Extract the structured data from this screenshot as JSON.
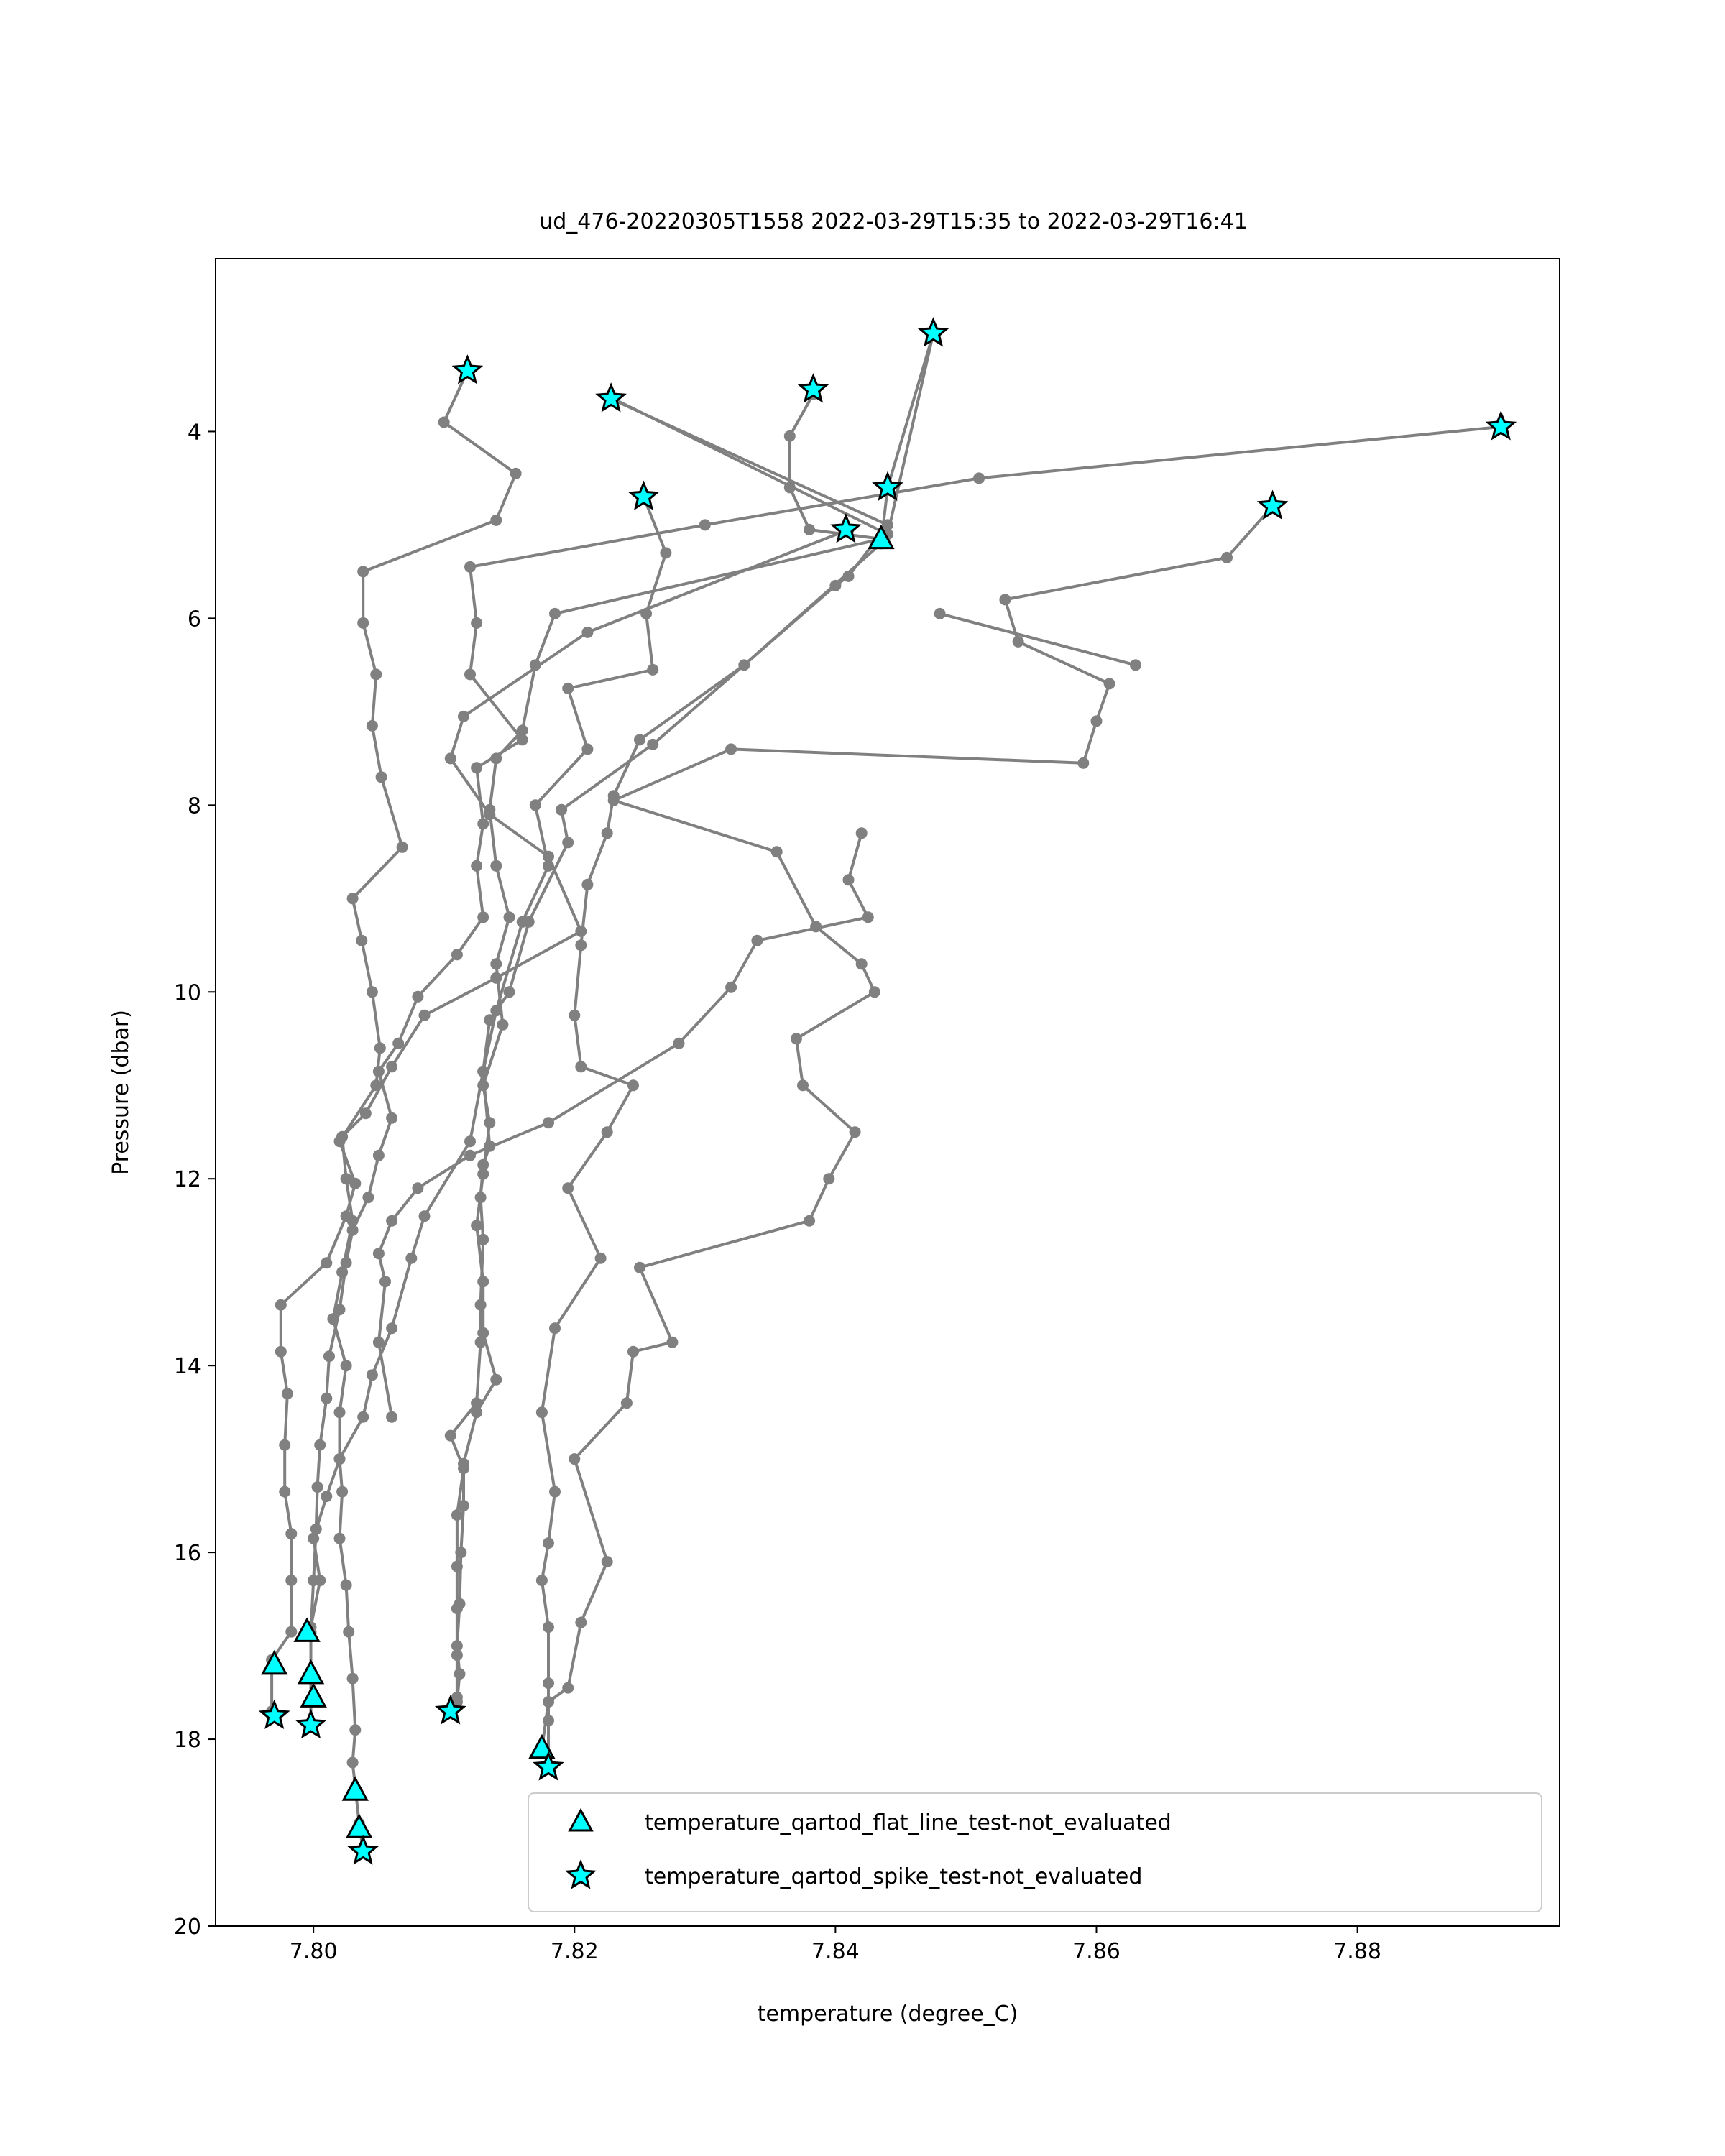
{
  "chart_data": {
    "type": "scatter",
    "title": "ud_476-20220305T1558 2022-03-29T15:35 to 2022-03-29T16:41",
    "xlabel": "temperature (degree_C)",
    "ylabel": "Pressure (dbar)",
    "xlim": [
      7.7925,
      7.8955
    ],
    "ylim": [
      20,
      2.15
    ],
    "y_inverted": true,
    "x_ticks": [
      "7.80",
      "7.82",
      "7.84",
      "7.86",
      "7.88"
    ],
    "y_ticks": [
      "4",
      "6",
      "8",
      "10",
      "12",
      "14",
      "16",
      "18",
      "20"
    ],
    "grid": false,
    "legend_position": "lower right",
    "line_color": "#808080",
    "marker_color": "#00ffff",
    "series": [
      {
        "name": "",
        "kind": "profile-line",
        "points": [
          [
            7.8118,
            3.35
          ],
          [
            7.81,
            3.9
          ],
          [
            7.8155,
            4.45
          ],
          [
            7.814,
            4.95
          ],
          [
            7.8038,
            5.5
          ],
          [
            7.8038,
            6.05
          ],
          [
            7.8048,
            6.6
          ],
          [
            7.8045,
            7.15
          ],
          [
            7.8052,
            7.7
          ],
          [
            7.8068,
            8.45
          ],
          [
            7.803,
            9.0
          ],
          [
            7.8037,
            9.45
          ],
          [
            7.8045,
            10.0
          ],
          [
            7.8051,
            10.6
          ],
          [
            7.8048,
            11.0
          ],
          [
            7.802,
            11.6
          ],
          [
            7.8032,
            12.05
          ],
          [
            7.8025,
            12.4
          ],
          [
            7.801,
            12.9
          ],
          [
            7.7975,
            13.35
          ],
          [
            7.7975,
            13.85
          ],
          [
            7.798,
            14.3
          ],
          [
            7.7978,
            14.85
          ],
          [
            7.7978,
            15.35
          ],
          [
            7.7983,
            15.8
          ],
          [
            7.7983,
            16.3
          ],
          [
            7.7983,
            16.85
          ],
          [
            7.7968,
            17.15
          ],
          [
            7.7968,
            17.7
          ]
        ]
      },
      {
        "name": "",
        "kind": "profile-line",
        "points": [
          [
            7.8475,
            2.95
          ],
          [
            7.844,
            4.6
          ],
          [
            7.8435,
            5.2
          ],
          [
            7.833,
            6.5
          ],
          [
            7.825,
            7.3
          ],
          [
            7.823,
            7.9
          ],
          [
            7.8225,
            8.3
          ],
          [
            7.821,
            8.85
          ],
          [
            7.8205,
            9.5
          ],
          [
            7.82,
            10.25
          ],
          [
            7.8205,
            10.8
          ],
          [
            7.8245,
            11.0
          ],
          [
            7.8225,
            11.5
          ],
          [
            7.8195,
            12.1
          ],
          [
            7.822,
            12.85
          ],
          [
            7.8185,
            13.6
          ],
          [
            7.8175,
            14.5
          ],
          [
            7.8185,
            15.35
          ],
          [
            7.818,
            15.9
          ],
          [
            7.8175,
            16.3
          ],
          [
            7.818,
            16.8
          ],
          [
            7.818,
            17.4
          ],
          [
            7.818,
            17.8
          ],
          [
            7.818,
            18.3
          ]
        ]
      },
      {
        "name": "",
        "kind": "profile-line",
        "points": [
          [
            7.8228,
            3.65
          ],
          [
            7.844,
            5.0
          ],
          [
            7.841,
            5.55
          ],
          [
            7.84,
            5.65
          ],
          [
            7.826,
            7.35
          ],
          [
            7.819,
            8.05
          ],
          [
            7.8195,
            8.4
          ],
          [
            7.8165,
            9.25
          ],
          [
            7.815,
            10.0
          ],
          [
            7.8135,
            10.3
          ],
          [
            7.813,
            10.85
          ],
          [
            7.8135,
            11.65
          ],
          [
            7.813,
            11.85
          ],
          [
            7.8128,
            12.2
          ],
          [
            7.813,
            12.65
          ],
          [
            7.8128,
            13.35
          ],
          [
            7.8128,
            13.75
          ],
          [
            7.8125,
            14.4
          ],
          [
            7.8105,
            14.75
          ],
          [
            7.8115,
            15.1
          ],
          [
            7.811,
            15.6
          ],
          [
            7.811,
            16.15
          ],
          [
            7.811,
            16.6
          ],
          [
            7.811,
            17.1
          ],
          [
            7.811,
            17.55
          ],
          [
            7.8105,
            17.7
          ]
        ]
      },
      {
        "name": "",
        "kind": "profile-line",
        "points": [
          [
            7.8383,
            3.6
          ],
          [
            7.8365,
            4.05
          ],
          [
            7.8365,
            4.6
          ],
          [
            7.838,
            5.05
          ],
          [
            7.8435,
            5.15
          ],
          [
            7.8185,
            5.95
          ],
          [
            7.817,
            6.5
          ],
          [
            7.816,
            7.2
          ],
          [
            7.814,
            7.5
          ],
          [
            7.8135,
            8.05
          ],
          [
            7.814,
            8.65
          ],
          [
            7.815,
            9.2
          ],
          [
            7.814,
            9.7
          ],
          [
            7.8145,
            10.35
          ],
          [
            7.813,
            11.0
          ],
          [
            7.8135,
            11.4
          ],
          [
            7.813,
            11.95
          ],
          [
            7.8125,
            12.5
          ],
          [
            7.813,
            13.1
          ],
          [
            7.813,
            13.65
          ],
          [
            7.814,
            14.15
          ],
          [
            7.8125,
            14.5
          ],
          [
            7.8115,
            15.05
          ],
          [
            7.8115,
            15.5
          ],
          [
            7.8113,
            16.0
          ],
          [
            7.8112,
            16.55
          ],
          [
            7.811,
            17.0
          ],
          [
            7.8112,
            17.3
          ],
          [
            7.811,
            17.6
          ]
        ]
      },
      {
        "name": "",
        "kind": "profile-line",
        "points": [
          [
            7.8253,
            4.7
          ],
          [
            7.827,
            5.3
          ],
          [
            7.8255,
            5.95
          ],
          [
            7.826,
            6.55
          ],
          [
            7.8195,
            6.75
          ],
          [
            7.821,
            7.4
          ],
          [
            7.817,
            8.0
          ],
          [
            7.818,
            8.65
          ],
          [
            7.816,
            9.25
          ],
          [
            7.814,
            10.2
          ],
          [
            7.813,
            10.85
          ],
          [
            7.812,
            11.6
          ],
          [
            7.8085,
            12.4
          ],
          [
            7.8075,
            12.85
          ],
          [
            7.806,
            13.6
          ],
          [
            7.8045,
            14.1
          ],
          [
            7.8038,
            14.55
          ],
          [
            7.802,
            15.0
          ],
          [
            7.801,
            15.4
          ],
          [
            7.8,
            15.85
          ],
          [
            7.8005,
            16.3
          ],
          [
            7.7998,
            16.8
          ]
        ]
      },
      {
        "name": "",
        "kind": "profile-line",
        "points": [
          [
            7.841,
            5.05
          ],
          [
            7.821,
            6.15
          ],
          [
            7.8115,
            7.05
          ],
          [
            7.8105,
            7.5
          ],
          [
            7.8135,
            8.1
          ],
          [
            7.818,
            8.55
          ],
          [
            7.8205,
            9.35
          ],
          [
            7.814,
            9.85
          ],
          [
            7.8085,
            10.25
          ],
          [
            7.806,
            10.8
          ],
          [
            7.804,
            11.3
          ],
          [
            7.8022,
            11.55
          ],
          [
            7.8025,
            12.0
          ],
          [
            7.803,
            12.45
          ],
          [
            7.8022,
            13.0
          ],
          [
            7.8015,
            13.5
          ],
          [
            7.8025,
            14.0
          ],
          [
            7.802,
            14.5
          ],
          [
            7.802,
            15.0
          ],
          [
            7.8022,
            15.35
          ],
          [
            7.802,
            15.85
          ],
          [
            7.8025,
            16.35
          ],
          [
            7.8027,
            16.85
          ],
          [
            7.803,
            17.35
          ],
          [
            7.8032,
            17.9
          ],
          [
            7.803,
            18.25
          ],
          [
            7.8035,
            18.9
          ],
          [
            7.8038,
            19.2
          ]
        ]
      },
      {
        "name": "",
        "kind": "profile-line",
        "points": [
          [
            7.891,
            3.95
          ],
          [
            7.851,
            4.5
          ],
          [
            7.83,
            5.0
          ],
          [
            7.812,
            5.45
          ],
          [
            7.8125,
            6.05
          ],
          [
            7.812,
            6.6
          ],
          [
            7.816,
            7.3
          ],
          [
            7.8125,
            7.6
          ],
          [
            7.813,
            8.2
          ],
          [
            7.8125,
            8.65
          ],
          [
            7.813,
            9.2
          ],
          [
            7.811,
            9.6
          ],
          [
            7.808,
            10.05
          ],
          [
            7.8065,
            10.55
          ],
          [
            7.805,
            10.85
          ],
          [
            7.806,
            11.35
          ],
          [
            7.805,
            11.75
          ],
          [
            7.8042,
            12.2
          ],
          [
            7.803,
            12.55
          ],
          [
            7.8025,
            12.9
          ],
          [
            7.802,
            13.4
          ],
          [
            7.8012,
            13.9
          ],
          [
            7.801,
            14.35
          ],
          [
            7.8005,
            14.85
          ],
          [
            7.8003,
            15.3
          ],
          [
            7.8002,
            15.75
          ],
          [
            7.8,
            16.3
          ],
          [
            7.7998,
            16.85
          ],
          [
            7.7998,
            17.3
          ],
          [
            7.7998,
            17.85
          ]
        ]
      },
      {
        "name": "",
        "kind": "profile-line",
        "points": [
          [
            7.8735,
            4.8
          ],
          [
            7.87,
            5.35
          ],
          [
            7.853,
            5.8
          ],
          [
            7.854,
            6.25
          ],
          [
            7.861,
            6.7
          ],
          [
            7.86,
            7.1
          ],
          [
            7.859,
            7.55
          ],
          [
            7.832,
            7.4
          ],
          [
            7.823,
            7.95
          ],
          [
            7.8355,
            8.5
          ],
          [
            7.8385,
            9.3
          ],
          [
            7.842,
            9.7
          ],
          [
            7.843,
            10.0
          ],
          [
            7.837,
            10.5
          ],
          [
            7.8375,
            11.0
          ],
          [
            7.8415,
            11.5
          ],
          [
            7.8395,
            12.0
          ],
          [
            7.838,
            12.45
          ],
          [
            7.825,
            12.95
          ],
          [
            7.8275,
            13.75
          ],
          [
            7.8245,
            13.85
          ],
          [
            7.824,
            14.4
          ],
          [
            7.82,
            15.0
          ],
          [
            7.8225,
            16.1
          ],
          [
            7.8205,
            16.75
          ],
          [
            7.8195,
            17.45
          ],
          [
            7.818,
            17.6
          ],
          [
            7.8175,
            18.1
          ]
        ]
      },
      {
        "name": "",
        "kind": "profile-line",
        "points": [
          [
            7.823,
            3.65
          ],
          [
            7.844,
            5.1
          ],
          [
            7.8475,
            2.95
          ]
        ]
      },
      {
        "name": "",
        "kind": "profile-line",
        "points": [
          [
            7.863,
            6.5
          ],
          [
            7.848,
            5.95
          ]
        ]
      },
      {
        "name": "",
        "kind": "profile-line",
        "points": [
          [
            7.842,
            8.3
          ],
          [
            7.841,
            8.8
          ],
          [
            7.8425,
            9.2
          ],
          [
            7.834,
            9.45
          ],
          [
            7.832,
            9.95
          ],
          [
            7.828,
            10.55
          ],
          [
            7.818,
            11.4
          ],
          [
            7.812,
            11.75
          ],
          [
            7.808,
            12.1
          ],
          [
            7.806,
            12.45
          ],
          [
            7.805,
            12.8
          ],
          [
            7.8055,
            13.1
          ],
          [
            7.805,
            13.75
          ],
          [
            7.806,
            14.55
          ]
        ]
      },
      {
        "name": "temperature_qartod_flat_line_test-not_evaluated",
        "kind": "marker-triangle",
        "points": [
          [
            7.8435,
            5.15
          ],
          [
            7.797,
            17.2
          ],
          [
            7.7995,
            16.85
          ],
          [
            7.7998,
            17.3
          ],
          [
            7.8,
            17.55
          ],
          [
            7.8032,
            18.55
          ],
          [
            7.8035,
            18.95
          ],
          [
            7.8175,
            18.1
          ]
        ]
      },
      {
        "name": "temperature_qartod_spike_test-not_evaluated",
        "kind": "marker-star",
        "points": [
          [
            7.8118,
            3.35
          ],
          [
            7.8228,
            3.65
          ],
          [
            7.8383,
            3.55
          ],
          [
            7.8475,
            2.95
          ],
          [
            7.891,
            3.95
          ],
          [
            7.8253,
            4.7
          ],
          [
            7.844,
            4.6
          ],
          [
            7.8408,
            5.05
          ],
          [
            7.8735,
            4.8
          ],
          [
            7.797,
            17.75
          ],
          [
            7.7998,
            17.85
          ],
          [
            7.8105,
            17.7
          ],
          [
            7.8038,
            19.2
          ],
          [
            7.818,
            18.3
          ]
        ]
      }
    ]
  }
}
